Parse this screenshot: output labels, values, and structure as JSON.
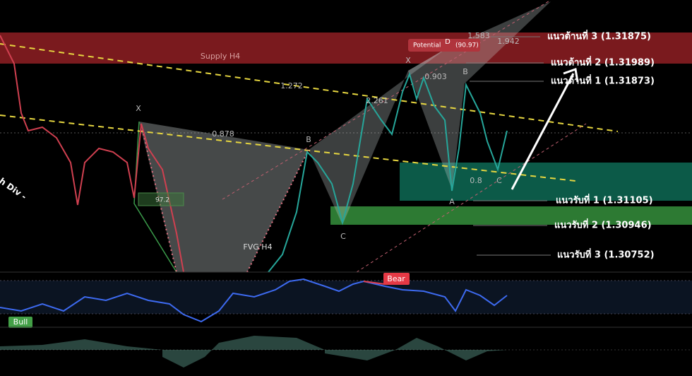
{
  "zones": {
    "supply": "Supply H4",
    "fvg": "FVG H4",
    "divergence": "h Div -"
  },
  "potential": {
    "label": "Potential",
    "point": "D",
    "score": "(90.97)"
  },
  "pattern_labels": {
    "left_x": "X",
    "left_b": "B",
    "left_c": "C",
    "ratio_0878": "0.878",
    "ratio_1272": "1.272",
    "ratio_2261": "2.261",
    "right_x": "X",
    "ratio_0903": "0.903",
    "right_b": "B",
    "ratio_1583": "1.583",
    "ratio_1942": "1.942",
    "right_a": "A",
    "right_c": "C",
    "ratio_08": "0.8",
    "score": "97.2"
  },
  "levels": {
    "r3": "แนวต้านที่ 3 (1.31875)",
    "r2": "แนวต้านที่ 2 (1.31989)",
    "r1": "แนวต้านที่ 1 (1.31873)",
    "s1": "แนวรับที่ 1 (1.31105)",
    "s2": "แนวรับที่ 2 (1.30946)",
    "s3": "แนวรับที่ 3 (1.30752)"
  },
  "indicator_labels": {
    "bear": "Bear",
    "bull": "Bull"
  }
}
